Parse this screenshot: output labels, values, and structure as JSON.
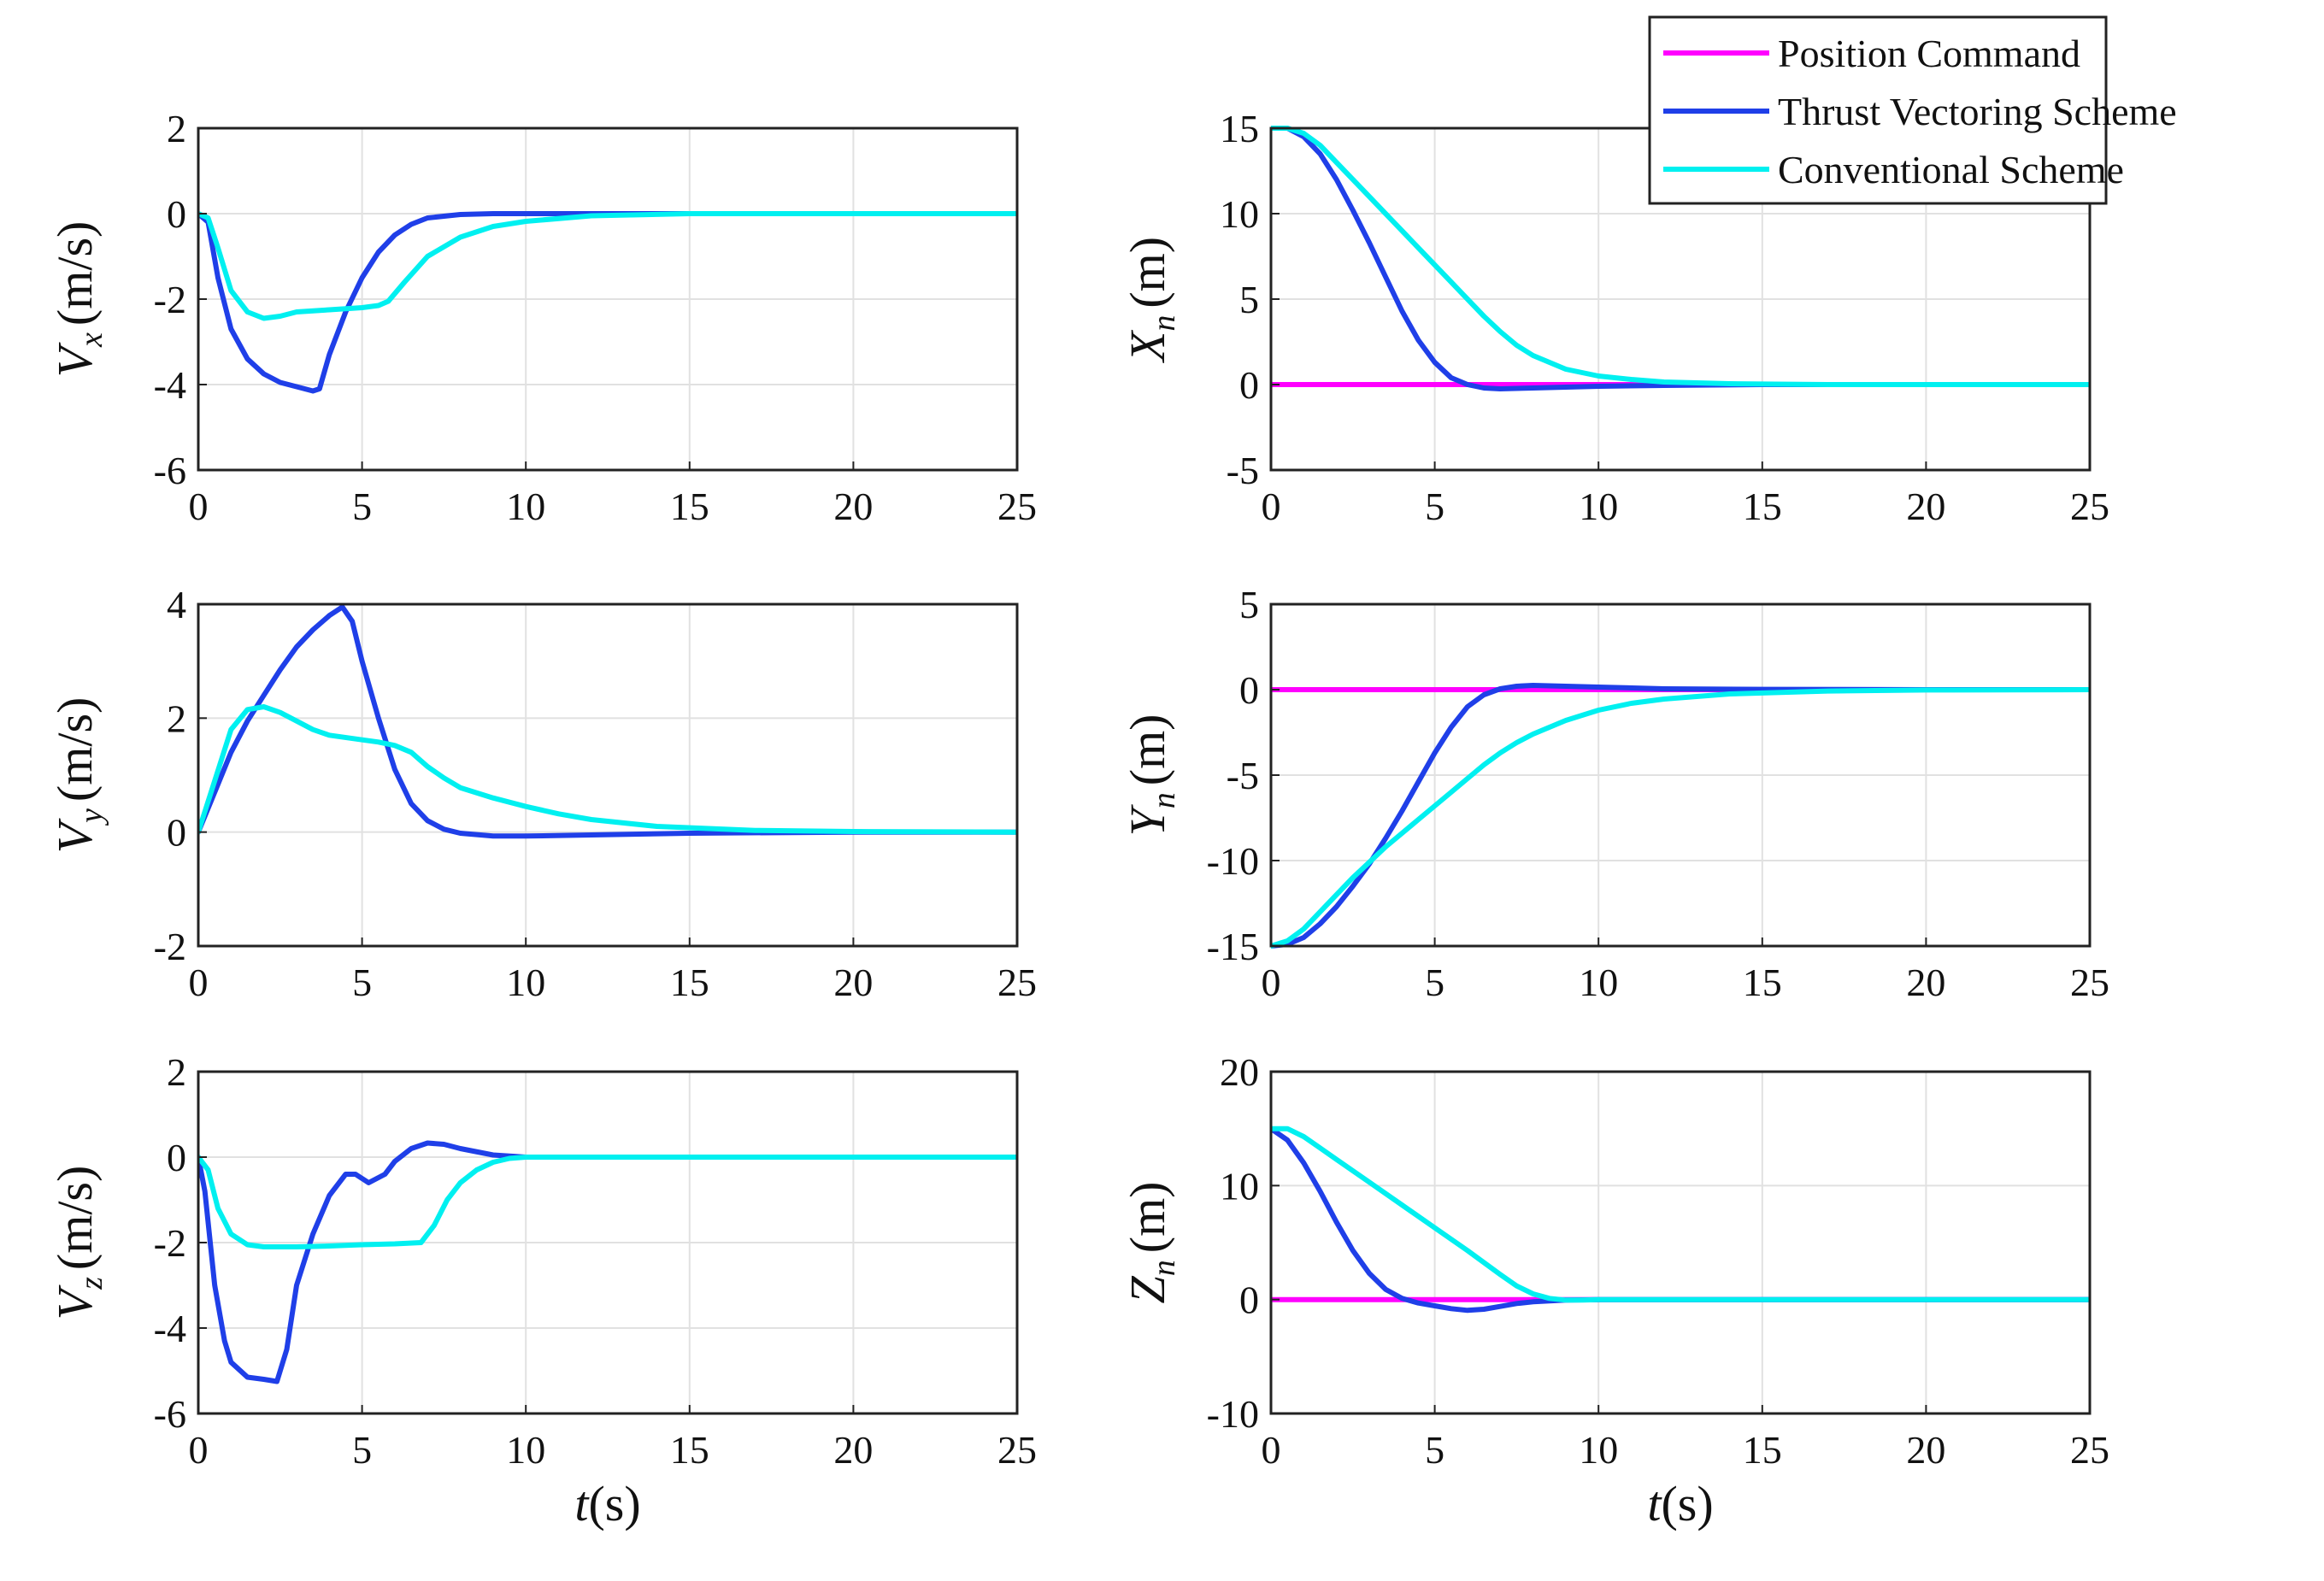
{
  "colors": {
    "position_command": "#ff00ff",
    "thrust_vectoring": "#1f3fe8",
    "conventional": "#00f0f0",
    "grid": "#e1e1e1",
    "axes": "#222222"
  },
  "legend": {
    "position": "top-right",
    "entries": [
      {
        "label": "Position Command",
        "color": "#ff00ff"
      },
      {
        "label": "Thrust Vectoring Scheme",
        "color": "#1f3fe8"
      },
      {
        "label": "Conventional Scheme",
        "color": "#00f0f0"
      }
    ]
  },
  "chart_data": [
    {
      "type": "line",
      "id": "vx",
      "ylabel": "V_x (m/s)",
      "ylabel_main": "V",
      "ylabel_sub": "x",
      "ylabel_unit": "(m/s)",
      "xlim": [
        0,
        25
      ],
      "ylim": [
        -6,
        2
      ],
      "xticks": [
        0,
        5,
        10,
        15,
        20,
        25
      ],
      "yticks": [
        -6,
        -4,
        -2,
        0,
        2
      ],
      "xlabel": "",
      "grid": true,
      "series": [
        {
          "name": "Thrust Vectoring Scheme",
          "color": "#1f3fe8",
          "x": [
            0,
            0.3,
            0.6,
            1,
            1.5,
            2,
            2.5,
            3,
            3.5,
            3.7,
            4,
            4.5,
            5,
            5.5,
            6,
            6.5,
            7,
            8,
            9,
            10,
            12,
            15,
            20,
            25
          ],
          "y": [
            0,
            -0.2,
            -1.5,
            -2.7,
            -3.4,
            -3.75,
            -3.95,
            -4.05,
            -4.15,
            -4.1,
            -3.3,
            -2.3,
            -1.5,
            -0.9,
            -0.5,
            -0.25,
            -0.1,
            -0.02,
            0,
            0,
            0,
            0,
            0,
            0
          ]
        },
        {
          "name": "Conventional Scheme",
          "color": "#00f0f0",
          "x": [
            0,
            0.3,
            0.6,
            1,
            1.5,
            2,
            2.5,
            3,
            4,
            5,
            5.5,
            5.8,
            6.3,
            7,
            8,
            9,
            10,
            12,
            15,
            20,
            25
          ],
          "y": [
            0,
            -0.1,
            -0.8,
            -1.8,
            -2.3,
            -2.45,
            -2.4,
            -2.3,
            -2.25,
            -2.2,
            -2.15,
            -2.05,
            -1.6,
            -1.0,
            -0.55,
            -0.3,
            -0.18,
            -0.05,
            0,
            0,
            0
          ]
        }
      ]
    },
    {
      "type": "line",
      "id": "xn",
      "ylabel": "X_n (m)",
      "ylabel_main": "X",
      "ylabel_sub": "n",
      "ylabel_unit": "(m)",
      "xlim": [
        0,
        25
      ],
      "ylim": [
        -5,
        15
      ],
      "xticks": [
        0,
        5,
        10,
        15,
        20,
        25
      ],
      "yticks": [
        -5,
        0,
        5,
        10,
        15
      ],
      "xlabel": "",
      "grid": true,
      "series": [
        {
          "name": "Position Command",
          "color": "#ff00ff",
          "x": [
            0,
            25
          ],
          "y": [
            0,
            0
          ]
        },
        {
          "name": "Thrust Vectoring Scheme",
          "color": "#1f3fe8",
          "x": [
            0,
            0.5,
            1,
            1.5,
            2,
            2.5,
            3,
            3.5,
            4,
            4.5,
            5,
            5.5,
            6,
            6.5,
            7,
            8,
            10,
            12,
            15,
            20,
            25
          ],
          "y": [
            15,
            15,
            14.5,
            13.5,
            12,
            10.2,
            8.3,
            6.3,
            4.3,
            2.6,
            1.3,
            0.4,
            0,
            -0.2,
            -0.25,
            -0.2,
            -0.1,
            -0.05,
            0,
            0,
            0
          ]
        },
        {
          "name": "Conventional Scheme",
          "color": "#00f0f0",
          "x": [
            0,
            0.5,
            1,
            1.5,
            2,
            2.5,
            3,
            3.5,
            4,
            4.5,
            5,
            5.5,
            6,
            6.5,
            7,
            7.5,
            8,
            9,
            10,
            11,
            12,
            14,
            17,
            20,
            25
          ],
          "y": [
            15,
            15,
            14.7,
            14,
            13,
            12,
            11,
            10,
            9,
            8,
            7,
            6,
            5,
            4,
            3.1,
            2.3,
            1.7,
            0.9,
            0.5,
            0.3,
            0.15,
            0.05,
            0,
            0,
            0
          ]
        }
      ]
    },
    {
      "type": "line",
      "id": "vy",
      "ylabel": "V_y (m/s)",
      "ylabel_main": "V",
      "ylabel_sub": "y",
      "ylabel_unit": "(m/s)",
      "xlim": [
        0,
        25
      ],
      "ylim": [
        -2,
        4
      ],
      "xticks": [
        0,
        5,
        10,
        15,
        20,
        25
      ],
      "yticks": [
        -2,
        0,
        2,
        4
      ],
      "xlabel": "",
      "grid": true,
      "series": [
        {
          "name": "Thrust Vectoring Scheme",
          "color": "#1f3fe8",
          "x": [
            0,
            0.5,
            1,
            1.5,
            2,
            2.5,
            3,
            3.5,
            4,
            4.4,
            4.7,
            5,
            5.5,
            6,
            6.5,
            7,
            7.5,
            8,
            9,
            10,
            12,
            15,
            20,
            25
          ],
          "y": [
            0,
            0.7,
            1.4,
            1.95,
            2.4,
            2.85,
            3.25,
            3.55,
            3.8,
            3.95,
            3.7,
            3.0,
            2.0,
            1.1,
            0.5,
            0.2,
            0.05,
            -0.02,
            -0.07,
            -0.07,
            -0.05,
            -0.02,
            0,
            0
          ]
        },
        {
          "name": "Conventional Scheme",
          "color": "#00f0f0",
          "x": [
            0,
            0.5,
            1,
            1.5,
            2,
            2.5,
            3,
            3.5,
            4,
            5,
            5.5,
            6,
            6.5,
            7,
            7.5,
            8,
            9,
            10,
            11,
            12,
            14,
            17,
            20,
            25
          ],
          "y": [
            0,
            0.9,
            1.8,
            2.15,
            2.2,
            2.1,
            1.95,
            1.8,
            1.7,
            1.62,
            1.58,
            1.52,
            1.4,
            1.15,
            0.95,
            0.78,
            0.6,
            0.45,
            0.32,
            0.22,
            0.1,
            0.03,
            0.01,
            0
          ]
        }
      ]
    },
    {
      "type": "line",
      "id": "yn",
      "ylabel": "Y_n (m)",
      "ylabel_main": "Y",
      "ylabel_sub": "n",
      "ylabel_unit": "(m)",
      "xlim": [
        0,
        25
      ],
      "ylim": [
        -15,
        5
      ],
      "xticks": [
        0,
        5,
        10,
        15,
        20,
        25
      ],
      "yticks": [
        -15,
        -10,
        -5,
        0,
        5
      ],
      "xlabel": "",
      "grid": true,
      "series": [
        {
          "name": "Position Command",
          "color": "#ff00ff",
          "x": [
            0,
            25
          ],
          "y": [
            0,
            0
          ]
        },
        {
          "name": "Thrust Vectoring Scheme",
          "color": "#1f3fe8",
          "x": [
            0,
            0.5,
            1,
            1.5,
            2,
            2.5,
            3,
            3.5,
            4,
            4.5,
            5,
            5.5,
            6,
            6.5,
            7,
            7.5,
            8,
            9,
            10,
            12,
            15,
            20,
            25
          ],
          "y": [
            -15,
            -14.9,
            -14.5,
            -13.7,
            -12.7,
            -11.5,
            -10.2,
            -8.7,
            -7.1,
            -5.4,
            -3.7,
            -2.2,
            -1.0,
            -0.3,
            0.05,
            0.2,
            0.25,
            0.2,
            0.15,
            0.05,
            0.02,
            0,
            0
          ]
        },
        {
          "name": "Conventional Scheme",
          "color": "#00f0f0",
          "x": [
            0,
            0.5,
            1,
            1.5,
            2,
            2.5,
            3,
            3.5,
            4,
            4.5,
            5,
            5.5,
            6,
            6.5,
            7,
            7.5,
            8,
            9,
            10,
            11,
            12,
            14,
            17,
            20,
            25
          ],
          "y": [
            -15,
            -14.7,
            -14,
            -13,
            -12,
            -11,
            -10.1,
            -9.2,
            -8.4,
            -7.6,
            -6.8,
            -6.0,
            -5.2,
            -4.4,
            -3.7,
            -3.1,
            -2.6,
            -1.8,
            -1.2,
            -0.8,
            -0.55,
            -0.25,
            -0.08,
            -0.02,
            0
          ]
        }
      ]
    },
    {
      "type": "line",
      "id": "vz",
      "ylabel": "V_z (m/s)",
      "ylabel_main": "V",
      "ylabel_sub": "z",
      "ylabel_unit": "(m/s)",
      "xlim": [
        0,
        25
      ],
      "ylim": [
        -6,
        2
      ],
      "xticks": [
        0,
        5,
        10,
        15,
        20,
        25
      ],
      "yticks": [
        -6,
        -4,
        -2,
        0,
        2
      ],
      "xlabel": "t(s)",
      "xlabel_main": "t",
      "xlabel_unit": "(s)",
      "grid": true,
      "series": [
        {
          "name": "Thrust Vectoring Scheme",
          "color": "#1f3fe8",
          "x": [
            0,
            0.2,
            0.5,
            0.8,
            1,
            1.5,
            2,
            2.4,
            2.7,
            3,
            3.5,
            4,
            4.5,
            4.8,
            5.2,
            5.7,
            6,
            6.5,
            7,
            7.5,
            8,
            9,
            10,
            12,
            15,
            20,
            25
          ],
          "y": [
            0,
            -0.8,
            -3.0,
            -4.3,
            -4.8,
            -5.15,
            -5.2,
            -5.25,
            -4.5,
            -3.0,
            -1.8,
            -0.9,
            -0.4,
            -0.4,
            -0.6,
            -0.4,
            -0.1,
            0.2,
            0.33,
            0.3,
            0.2,
            0.05,
            0,
            0,
            0,
            0,
            0
          ]
        },
        {
          "name": "Conventional Scheme",
          "color": "#00f0f0",
          "x": [
            0,
            0.3,
            0.6,
            1,
            1.5,
            2,
            3,
            4,
            5,
            6,
            6.8,
            7.2,
            7.6,
            8,
            8.5,
            9,
            9.5,
            10,
            12,
            15,
            20,
            25
          ],
          "y": [
            0,
            -0.3,
            -1.2,
            -1.8,
            -2.05,
            -2.1,
            -2.1,
            -2.08,
            -2.05,
            -2.03,
            -2.0,
            -1.6,
            -1.0,
            -0.6,
            -0.3,
            -0.12,
            -0.03,
            0,
            0,
            0,
            0,
            0
          ]
        }
      ]
    },
    {
      "type": "line",
      "id": "zn",
      "ylabel": "Z_n (m)",
      "ylabel_main": "Z",
      "ylabel_sub": "n",
      "ylabel_unit": "(m)",
      "xlim": [
        0,
        25
      ],
      "ylim": [
        -10,
        20
      ],
      "xticks": [
        0,
        5,
        10,
        15,
        20,
        25
      ],
      "yticks": [
        -10,
        0,
        10,
        20
      ],
      "xlabel": "t(s)",
      "xlabel_main": "t",
      "xlabel_unit": "(s)",
      "grid": true,
      "series": [
        {
          "name": "Position Command",
          "color": "#ff00ff",
          "x": [
            0,
            25
          ],
          "y": [
            0,
            0
          ]
        },
        {
          "name": "Thrust Vectoring Scheme",
          "color": "#1f3fe8",
          "x": [
            0,
            0.5,
            1,
            1.5,
            2,
            2.5,
            3,
            3.5,
            4,
            4.5,
            5,
            5.5,
            6,
            6.5,
            7,
            7.5,
            8,
            9,
            10,
            12,
            15,
            20,
            25
          ],
          "y": [
            15,
            14,
            12,
            9.5,
            6.8,
            4.3,
            2.3,
            0.9,
            0.1,
            -0.3,
            -0.55,
            -0.8,
            -0.95,
            -0.85,
            -0.6,
            -0.35,
            -0.2,
            -0.05,
            0,
            0,
            0,
            0,
            0
          ]
        },
        {
          "name": "Conventional Scheme",
          "color": "#00f0f0",
          "x": [
            0,
            0.5,
            1,
            1.5,
            2,
            3,
            4,
            5,
            6,
            7,
            7.5,
            8,
            8.5,
            9,
            9.5,
            10,
            12,
            15,
            20,
            25
          ],
          "y": [
            15,
            15,
            14.3,
            13.3,
            12.3,
            10.3,
            8.3,
            6.3,
            4.3,
            2.2,
            1.2,
            0.5,
            0.1,
            -0.05,
            -0.05,
            0,
            0,
            0,
            0,
            0
          ]
        }
      ]
    }
  ]
}
